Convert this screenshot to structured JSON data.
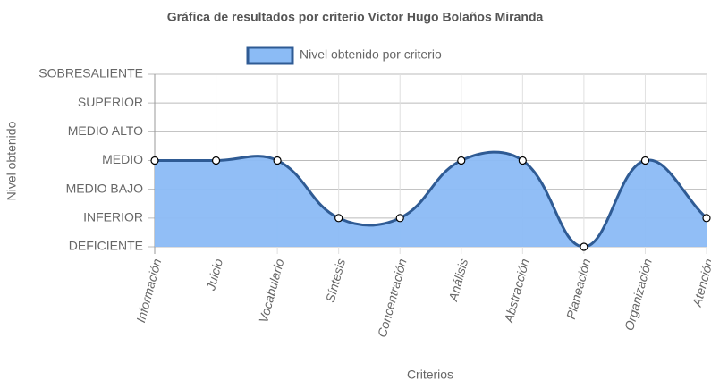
{
  "chart_data": {
    "type": "line",
    "title": "Gráfica de resultados por criterio Victor Hugo Bolaños Miranda",
    "x_label": "Criterios",
    "y_label": "Nivel obtenido",
    "categories": [
      "Información",
      "Juicio",
      "Vocabulario",
      "Síntesis",
      "Concentración",
      "Análisis",
      "Abstracción",
      "Planeación",
      "Organización",
      "Atención"
    ],
    "series": [
      {
        "name": "Nivel obtenido por criterio",
        "color": "#2f5b94",
        "fill": "#8bbbf5",
        "values": [
          3,
          3,
          3,
          1,
          1,
          3,
          3,
          0,
          3,
          1
        ]
      }
    ],
    "ylim": [
      0,
      6
    ],
    "yticks": [
      {
        "value": 0,
        "label": "DEFICIENTE"
      },
      {
        "value": 1,
        "label": "INFERIOR"
      },
      {
        "value": 2,
        "label": "MEDIO BAJO"
      },
      {
        "value": 3,
        "label": "MEDIO"
      },
      {
        "value": 4,
        "label": "MEDIO ALTO"
      },
      {
        "value": 5,
        "label": "SUPERIOR"
      },
      {
        "value": 6,
        "label": "SOBRESALIENTE"
      }
    ],
    "grid": true,
    "legend": "top"
  }
}
